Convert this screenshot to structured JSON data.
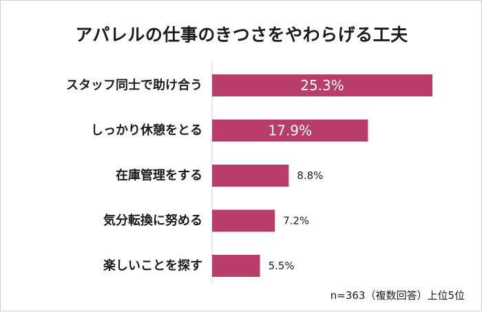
{
  "chart_data": {
    "type": "bar",
    "orientation": "horizontal",
    "title": "アパレルの仕事のきつさをやわらげる工夫",
    "categories": [
      "スタッフ同士で助け合う",
      "しっかり休憩をとる",
      "在庫管理をする",
      "気分転換に努める",
      "楽しいことを探す"
    ],
    "values": [
      25.3,
      17.9,
      8.8,
      7.2,
      5.5
    ],
    "value_labels": [
      "25.3%",
      "17.9%",
      "8.8%",
      "7.2%",
      "5.5%"
    ],
    "unit": "%",
    "xlim": [
      0,
      25.3
    ],
    "grid": false,
    "legend": "none",
    "bar_color": "#b83d68",
    "note": "n=363（複数回答）上位5位"
  }
}
